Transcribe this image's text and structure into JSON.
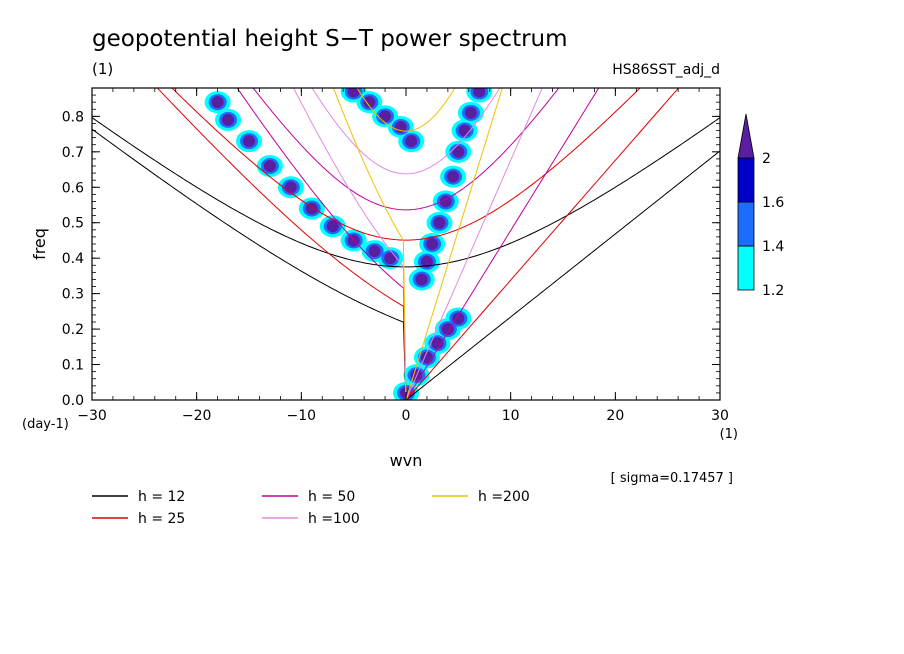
{
  "chart_data": {
    "type": "line",
    "title": "geopotential height S−T power spectrum",
    "subtitle_left": "(1)",
    "subtitle_right": "HS86SST_adj_d",
    "xlabel": "wvn",
    "ylabel": "freq",
    "x_unit": "(1)",
    "y_unit": "(day-1)",
    "xlim": [
      -30,
      30
    ],
    "ylim": [
      0,
      0.88
    ],
    "xticks": [
      -30,
      -20,
      -10,
      0,
      10,
      20,
      30
    ],
    "xtick_labels": [
      "−30",
      "−20",
      "−10",
      "0",
      "10",
      "20",
      "30"
    ],
    "yticks": [
      0,
      0.1,
      0.2,
      0.3,
      0.4,
      0.5,
      0.6,
      0.7,
      0.8
    ],
    "ytick_labels": [
      "0.0",
      "0.1",
      "0.2",
      "0.3",
      "0.4",
      "0.5",
      "0.6",
      "0.7",
      "0.8"
    ],
    "sigma_label": "[ sigma=0.17457 ]",
    "series": [
      {
        "name": "h = 12",
        "h": 12,
        "color": "#000000"
      },
      {
        "name": "h = 25",
        "h": 25,
        "color": "#e00000"
      },
      {
        "name": "h = 50",
        "h": 50,
        "color": "#c000a0"
      },
      {
        "name": "h =100",
        "h": 100,
        "color": "#e08ae0"
      },
      {
        "name": "h =200",
        "h": 200,
        "color": "#f0c000"
      }
    ],
    "colorbar": {
      "levels": [
        "1.2",
        "1.4",
        "1.6",
        "2"
      ],
      "colors": [
        "#00ffff",
        "#1e6bff",
        "#0000c8",
        "#5a1ea0"
      ]
    },
    "contour_regions": [
      {
        "level": 2,
        "x": [
          -18,
          -17,
          -15,
          -13,
          -11,
          -9,
          -7,
          -5,
          -3,
          -1.5
        ],
        "y": [
          0.84,
          0.79,
          0.73,
          0.66,
          0.6,
          0.54,
          0.49,
          0.45,
          0.42,
          0.4
        ]
      },
      {
        "level": 2,
        "x": [
          -5,
          -3.5,
          -2,
          -0.5,
          0.5
        ],
        "y": [
          0.87,
          0.84,
          0.8,
          0.77,
          0.73
        ]
      },
      {
        "level": 2,
        "x": [
          1.5,
          2,
          2.5,
          3.2,
          3.8,
          4.5,
          5,
          5.6,
          6.2,
          7
        ],
        "y": [
          0.34,
          0.39,
          0.44,
          0.5,
          0.56,
          0.63,
          0.7,
          0.76,
          0.81,
          0.87
        ]
      },
      {
        "level": 2,
        "x": [
          0,
          1,
          2,
          3,
          4,
          5
        ],
        "y": [
          0.02,
          0.07,
          0.12,
          0.16,
          0.2,
          0.23
        ]
      }
    ]
  }
}
